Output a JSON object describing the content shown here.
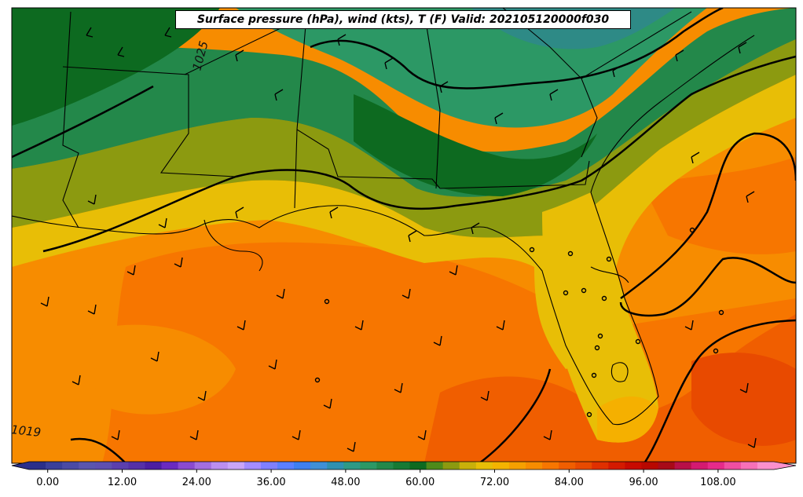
{
  "title": "Surface pressure (hPa), wind (kts), T (F) Valid: 202105120000f030",
  "isobar_labels": [
    {
      "text": "1025"
    },
    {
      "text": "1019"
    }
  ],
  "colorbar": {
    "min": -3,
    "max": 117,
    "step": 3,
    "tick_values": [
      0,
      12,
      24,
      36,
      48,
      60,
      72,
      84,
      96,
      108
    ],
    "tick_labels": [
      "0.00",
      "12.00",
      "24.00",
      "36.00",
      "48.00",
      "60.00",
      "72.00",
      "84.00",
      "96.00",
      "108.00"
    ],
    "extend": "both",
    "colors": [
      "#2a2f8a",
      "#3a3f9a",
      "#4a4aa5",
      "#5a55ae",
      "#5e4fb0",
      "#5b3fae",
      "#5530a8",
      "#4b1ea2",
      "#6a2ac0",
      "#8a4ad0",
      "#a36ee0",
      "#bb8ef0",
      "#c9a5f8",
      "#a48cff",
      "#7f7fff",
      "#5b7fff",
      "#3f7ff0",
      "#3f8fd6",
      "#2f90b0",
      "#2e9a86",
      "#2c9865",
      "#23884a",
      "#167a34",
      "#0d6a20",
      "#4e8a1a",
      "#8c9a10",
      "#c9b00a",
      "#e8be06",
      "#f4b400",
      "#f6a000",
      "#f78c00",
      "#f77600",
      "#f05e00",
      "#e84a00",
      "#e03000",
      "#d41a00",
      "#c80a00",
      "#b80800",
      "#a80a18",
      "#b81048",
      "#d41a70",
      "#e62a8a",
      "#f04ea2",
      "#f770b8",
      "#fb90cc"
    ]
  },
  "legend_colors": {
    "deep_green": "#0d6a20",
    "green": "#2c9865",
    "olive": "#8c9a10",
    "yellow": "#e8be06",
    "light_orange": "#f78c00",
    "orange": "#f77600",
    "red_orange": "#f05e00",
    "teal": "#2e8a86"
  }
}
